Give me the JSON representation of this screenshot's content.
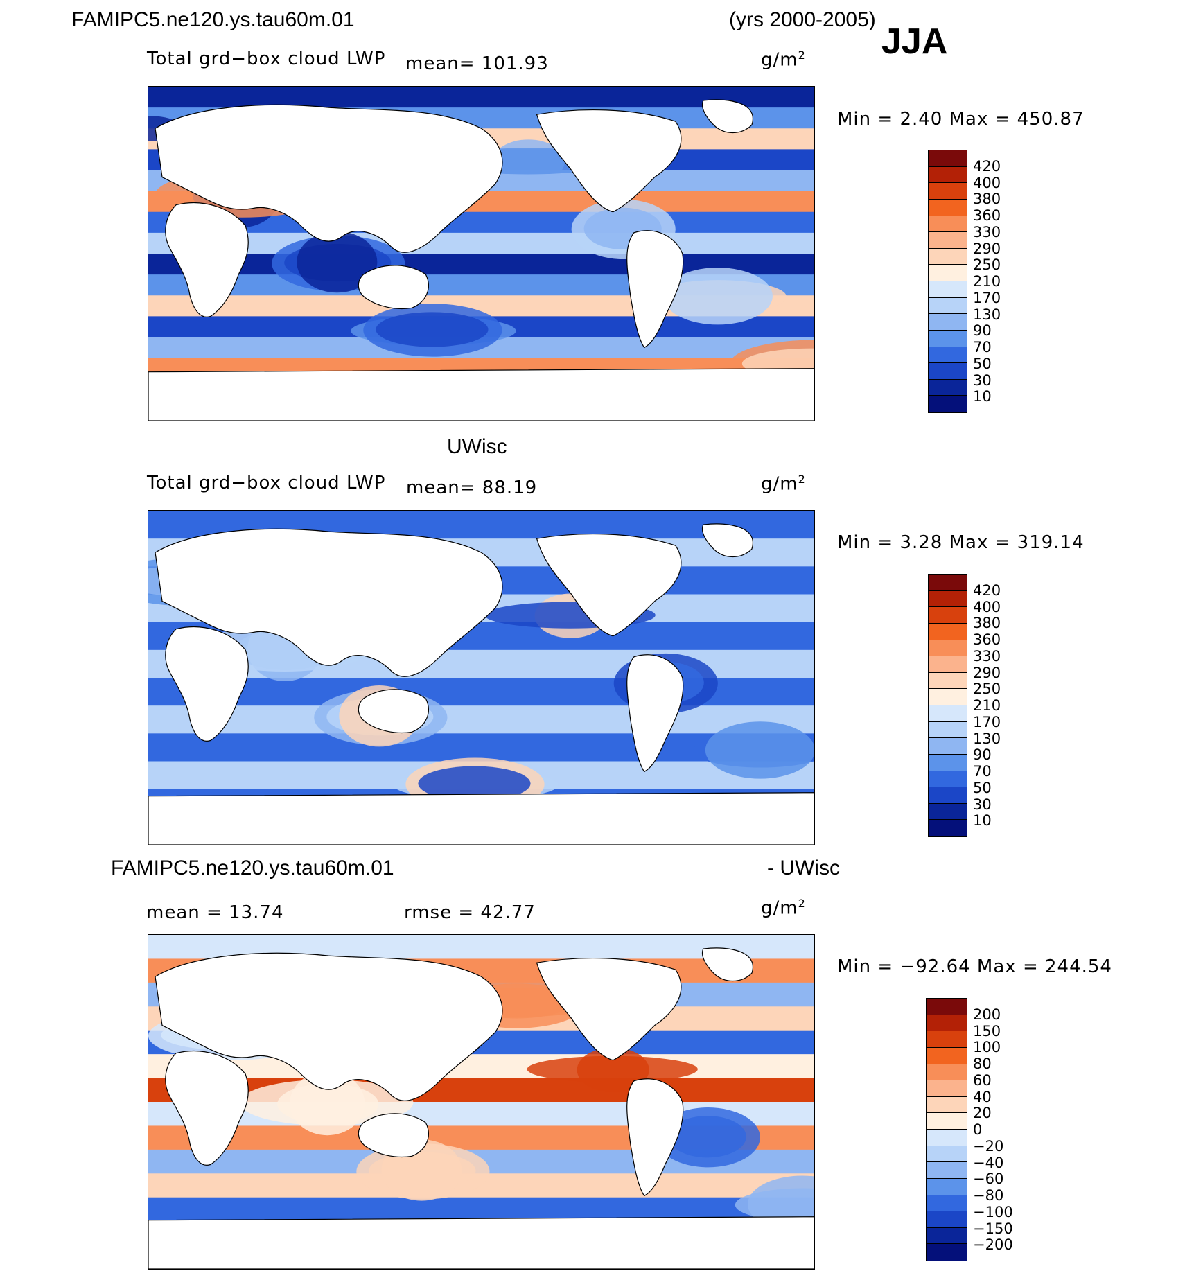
{
  "header": {
    "case_name": "FAMIPC5.ne120.ys.tau60m.01",
    "years": "(yrs 2000-2005)",
    "season": "JJA"
  },
  "panels": [
    {
      "id": "model",
      "subtitle_label": "Total grd−box cloud LWP",
      "mean_text": "mean=  101.93",
      "unit_base": "g/m",
      "unit_exp": "2",
      "minmax_text": "Min  =     2.40  Max  =  450.87",
      "colorbar_levels": [
        "420",
        "400",
        "380",
        "360",
        "330",
        "290",
        "250",
        "210",
        "170",
        "130",
        "90",
        "70",
        "50",
        "30",
        "10"
      ],
      "colorbar_colors": [
        "#7a0a0a",
        "#b32106",
        "#d8410d",
        "#f2641f",
        "#f88e58",
        "#fbb38d",
        "#fdd5b9",
        "#fff0e0",
        "#d6e7fb",
        "#b7d3f8",
        "#8fb6f2",
        "#5c93ea",
        "#3268df",
        "#1b46c7",
        "#0a2599",
        "#04107a"
      ],
      "field_palette": [
        "#0a2599",
        "#1b46c7",
        "#3268df",
        "#5c93ea",
        "#8fb6f2",
        "#b7d3f8",
        "#fdd5b9",
        "#f88e58"
      ]
    },
    {
      "id": "obs",
      "title": "UWisc",
      "subtitle_label": "Total grd−box cloud LWP",
      "mean_text": "mean=   88.19",
      "unit_base": "g/m",
      "unit_exp": "2",
      "minmax_text": "Min  =     3.28  Max  =  319.14",
      "colorbar_levels": [
        "420",
        "400",
        "380",
        "360",
        "330",
        "290",
        "250",
        "210",
        "170",
        "130",
        "90",
        "70",
        "50",
        "30",
        "10"
      ],
      "colorbar_colors": [
        "#7a0a0a",
        "#b32106",
        "#d8410d",
        "#f2641f",
        "#f88e58",
        "#fbb38d",
        "#fdd5b9",
        "#fff0e0",
        "#d6e7fb",
        "#b7d3f8",
        "#8fb6f2",
        "#5c93ea",
        "#3268df",
        "#1b46c7",
        "#0a2599",
        "#04107a"
      ],
      "field_palette": [
        "#1b46c7",
        "#3268df",
        "#5c93ea",
        "#8fb6f2",
        "#b7d3f8",
        "#fdd5b9"
      ]
    },
    {
      "id": "diff",
      "title_left": "FAMIPC5.ne120.ys.tau60m.01",
      "title_right": "- UWisc",
      "mean_text": "mean  =    13.74",
      "rmse_text": "rmse  =    42.77",
      "unit_base": "g/m",
      "unit_exp": "2",
      "minmax_text": "Min  =  −92.64  Max  =  244.54",
      "colorbar_levels": [
        "200",
        "150",
        "100",
        "80",
        "60",
        "40",
        "20",
        "0",
        "−20",
        "−40",
        "−60",
        "−80",
        "−100",
        "−150",
        "−200"
      ],
      "colorbar_colors": [
        "#7a0a0a",
        "#b32106",
        "#d8410d",
        "#f2641f",
        "#f88e58",
        "#fbb38d",
        "#fdd5b9",
        "#fff0e0",
        "#d6e7fb",
        "#b7d3f8",
        "#8fb6f2",
        "#5c93ea",
        "#3268df",
        "#1b46c7",
        "#0a2599",
        "#04107a"
      ],
      "field_palette": [
        "#3268df",
        "#8fb6f2",
        "#d6e7fb",
        "#fff0e0",
        "#fdd5b9",
        "#f88e58",
        "#d8410d"
      ]
    }
  ]
}
